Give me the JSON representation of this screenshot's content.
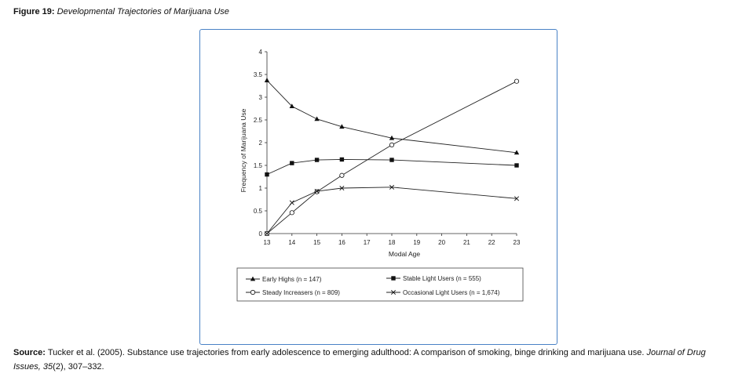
{
  "figure": {
    "label": "Figure 19:",
    "title": "Developmental Trajectories of Marijuana Use"
  },
  "source": {
    "label": "Source:",
    "text_before": "Tucker et al. (2005). Substance use trajectories from early adolescence to emerging adulthood: A comparison of smoking, binge drinking and marijuana use.",
    "journal": "Journal of Drug Issues,",
    "volume": "35",
    "issue_pages": "(2), 307–332."
  },
  "chart_data": {
    "type": "line",
    "title": "",
    "xlabel": "Modal Age",
    "ylabel": "Frequency of Marijuana Use",
    "xlim": [
      13,
      23
    ],
    "ylim": [
      0,
      4
    ],
    "x_ticks": [
      "13",
      "14",
      "15",
      "16",
      "17",
      "18",
      "19",
      "20",
      "21",
      "22",
      "23"
    ],
    "y_ticks": [
      "0",
      "0.5",
      "1",
      "1.5",
      "2",
      "2.5",
      "3",
      "3.5",
      "4"
    ],
    "legend_placement": "bottom",
    "series": [
      {
        "name": "Early Highs (n = 147)",
        "marker": "triangle",
        "x": [
          13,
          14,
          15,
          16,
          18,
          23
        ],
        "y": [
          3.37,
          2.8,
          2.52,
          2.35,
          2.1,
          1.78
        ]
      },
      {
        "name": "Steady Increasers (n = 809)",
        "marker": "circle",
        "x": [
          13,
          14,
          15,
          16,
          18,
          23
        ],
        "y": [
          0.0,
          0.46,
          0.92,
          1.28,
          1.95,
          3.35
        ]
      },
      {
        "name": "Stable Light Users (n = 555)",
        "marker": "square",
        "x": [
          13,
          14,
          15,
          16,
          18,
          23
        ],
        "y": [
          1.3,
          1.55,
          1.62,
          1.63,
          1.62,
          1.5
        ]
      },
      {
        "name": "Occasional Light Users (n = 1,674)",
        "marker": "x",
        "x": [
          13,
          14,
          15,
          16,
          18,
          23
        ],
        "y": [
          0.0,
          0.68,
          0.93,
          1.0,
          1.02,
          0.77
        ]
      }
    ]
  }
}
